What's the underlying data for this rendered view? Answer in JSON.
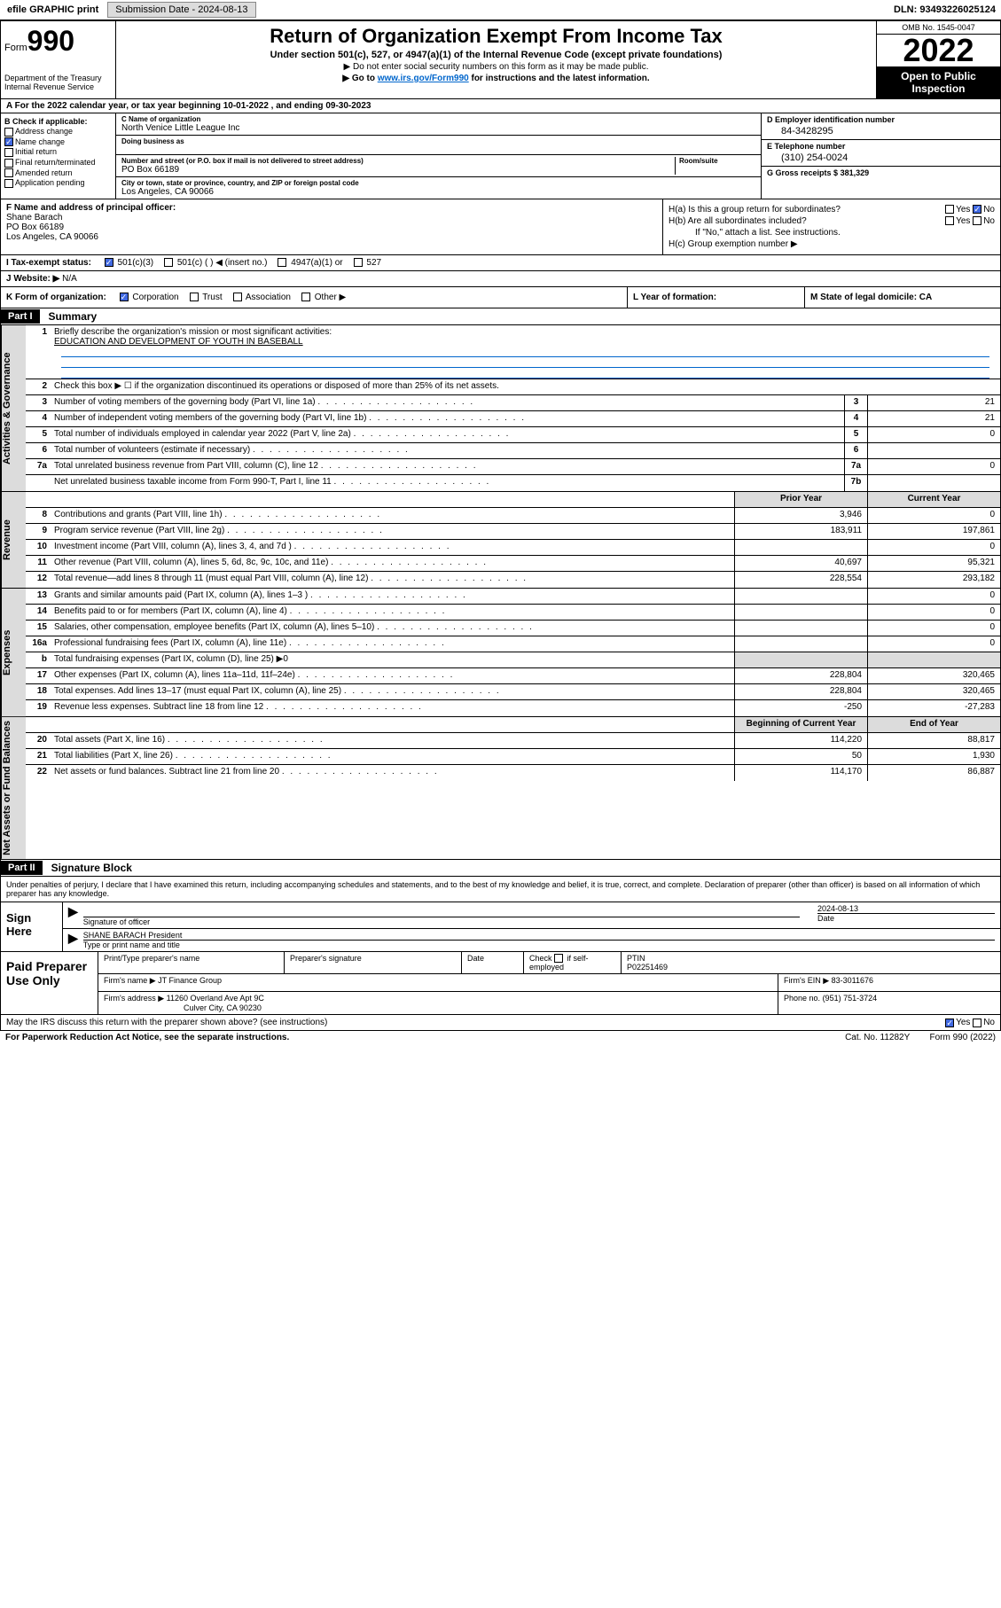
{
  "top": {
    "efile": "efile GRAPHIC print",
    "submission": "Submission Date - 2024-08-13",
    "dln": "DLN: 93493226025124"
  },
  "header": {
    "form_label": "Form",
    "form_num": "990",
    "dept": "Department of the Treasury\nInternal Revenue Service",
    "title": "Return of Organization Exempt From Income Tax",
    "sub": "Under section 501(c), 527, or 4947(a)(1) of the Internal Revenue Code (except private foundations)",
    "note": "▶ Do not enter social security numbers on this form as it may be made public.",
    "link_pre": "▶ Go to ",
    "link_url": "www.irs.gov/Form990",
    "link_post": " for instructions and the latest information.",
    "omb": "OMB No. 1545-0047",
    "year": "2022",
    "open": "Open to Public Inspection"
  },
  "line_a": "A For the 2022 calendar year, or tax year beginning 10-01-2022    , and ending 09-30-2023",
  "b": {
    "hdr": "B Check if applicable:",
    "items": [
      "Address change",
      "Name change",
      "Initial return",
      "Final return/terminated",
      "Amended return",
      "Application pending"
    ],
    "checked_idx": 1
  },
  "c": {
    "name_lbl": "C Name of organization",
    "name": "North Venice Little League Inc",
    "dba_lbl": "Doing business as",
    "addr_lbl": "Number and street (or P.O. box if mail is not delivered to street address)",
    "room_lbl": "Room/suite",
    "addr": "PO Box 66189",
    "city_lbl": "City or town, state or province, country, and ZIP or foreign postal code",
    "city": "Los Angeles, CA  90066"
  },
  "d": {
    "lbl": "D Employer identification number",
    "val": "84-3428295"
  },
  "e": {
    "lbl": "E Telephone number",
    "val": "(310) 254-0024"
  },
  "g": {
    "lbl": "G Gross receipts $",
    "val": "381,329"
  },
  "f": {
    "lbl": "F Name and address of principal officer:",
    "name": "Shane Barach",
    "addr1": "PO Box 66189",
    "addr2": "Los Angeles, CA  90066"
  },
  "h": {
    "a": "H(a)  Is this a group return for subordinates?",
    "b": "H(b)  Are all subordinates included?",
    "b_note": "If \"No,\" attach a list. See instructions.",
    "c": "H(c)  Group exemption number ▶",
    "yes": "Yes",
    "no": "No"
  },
  "i": {
    "lbl": "I   Tax-exempt status:",
    "opts": [
      "501(c)(3)",
      "501(c) (  ) ◀ (insert no.)",
      "4947(a)(1) or",
      "527"
    ],
    "checked_idx": 0
  },
  "j": {
    "lbl": "J   Website: ▶",
    "val": "N/A"
  },
  "k": {
    "lbl": "K Form of organization:",
    "opts": [
      "Corporation",
      "Trust",
      "Association",
      "Other ▶"
    ],
    "checked_idx": 0
  },
  "l": "L Year of formation:",
  "m": "M State of legal domicile: CA",
  "part1": {
    "hdr": "Part I",
    "title": "Summary"
  },
  "sections": [
    {
      "side": "Activities & Governance",
      "rows": [
        {
          "n": "1",
          "d": "Briefly describe the organization's mission or most significant activities:",
          "mission": "EDUCATION AND DEVELOPMENT OF YOUTH IN BASEBALL",
          "type": "mission"
        },
        {
          "n": "2",
          "d": "Check this box ▶ ☐  if the organization discontinued its operations or disposed of more than 25% of its net assets.",
          "type": "plain"
        },
        {
          "n": "3",
          "d": "Number of voting members of the governing body (Part VI, line 1a)",
          "box": "3",
          "v": "21",
          "type": "single"
        },
        {
          "n": "4",
          "d": "Number of independent voting members of the governing body (Part VI, line 1b)",
          "box": "4",
          "v": "21",
          "type": "single"
        },
        {
          "n": "5",
          "d": "Total number of individuals employed in calendar year 2022 (Part V, line 2a)",
          "box": "5",
          "v": "0",
          "type": "single"
        },
        {
          "n": "6",
          "d": "Total number of volunteers (estimate if necessary)",
          "box": "6",
          "v": "",
          "type": "single"
        },
        {
          "n": "7a",
          "d": "Total unrelated business revenue from Part VIII, column (C), line 12",
          "box": "7a",
          "v": "0",
          "type": "single"
        },
        {
          "n": "",
          "d": "Net unrelated business taxable income from Form 990-T, Part I, line 11",
          "box": "7b",
          "v": "",
          "type": "single"
        }
      ]
    },
    {
      "side": "Revenue",
      "header": {
        "py": "Prior Year",
        "cy": "Current Year"
      },
      "rows": [
        {
          "n": "8",
          "d": "Contributions and grants (Part VIII, line 1h)",
          "py": "3,946",
          "cy": "0"
        },
        {
          "n": "9",
          "d": "Program service revenue (Part VIII, line 2g)",
          "py": "183,911",
          "cy": "197,861"
        },
        {
          "n": "10",
          "d": "Investment income (Part VIII, column (A), lines 3, 4, and 7d )",
          "py": "",
          "cy": "0"
        },
        {
          "n": "11",
          "d": "Other revenue (Part VIII, column (A), lines 5, 6d, 8c, 9c, 10c, and 11e)",
          "py": "40,697",
          "cy": "95,321"
        },
        {
          "n": "12",
          "d": "Total revenue—add lines 8 through 11 (must equal Part VIII, column (A), line 12)",
          "py": "228,554",
          "cy": "293,182"
        }
      ]
    },
    {
      "side": "Expenses",
      "rows": [
        {
          "n": "13",
          "d": "Grants and similar amounts paid (Part IX, column (A), lines 1–3 )",
          "py": "",
          "cy": "0"
        },
        {
          "n": "14",
          "d": "Benefits paid to or for members (Part IX, column (A), line 4)",
          "py": "",
          "cy": "0"
        },
        {
          "n": "15",
          "d": "Salaries, other compensation, employee benefits (Part IX, column (A), lines 5–10)",
          "py": "",
          "cy": "0"
        },
        {
          "n": "16a",
          "d": "Professional fundraising fees (Part IX, column (A), line 11e)",
          "py": "",
          "cy": "0"
        },
        {
          "n": "b",
          "d": "Total fundraising expenses (Part IX, column (D), line 25) ▶0",
          "py": "—",
          "cy": "—",
          "type": "span"
        },
        {
          "n": "17",
          "d": "Other expenses (Part IX, column (A), lines 11a–11d, 11f–24e)",
          "py": "228,804",
          "cy": "320,465"
        },
        {
          "n": "18",
          "d": "Total expenses. Add lines 13–17 (must equal Part IX, column (A), line 25)",
          "py": "228,804",
          "cy": "320,465"
        },
        {
          "n": "19",
          "d": "Revenue less expenses. Subtract line 18 from line 12",
          "py": "-250",
          "cy": "-27,283"
        }
      ]
    },
    {
      "side": "Net Assets or Fund Balances",
      "header": {
        "py": "Beginning of Current Year",
        "cy": "End of Year"
      },
      "rows": [
        {
          "n": "20",
          "d": "Total assets (Part X, line 16)",
          "py": "114,220",
          "cy": "88,817"
        },
        {
          "n": "21",
          "d": "Total liabilities (Part X, line 26)",
          "py": "50",
          "cy": "1,930"
        },
        {
          "n": "22",
          "d": "Net assets or fund balances. Subtract line 21 from line 20",
          "py": "114,170",
          "cy": "86,887"
        }
      ]
    }
  ],
  "part2": {
    "hdr": "Part II",
    "title": "Signature Block"
  },
  "sig": {
    "decl": "Under penalties of perjury, I declare that I have examined this return, including accompanying schedules and statements, and to the best of my knowledge and belief, it is true, correct, and complete. Declaration of preparer (other than officer) is based on all information of which preparer has any knowledge.",
    "sign_here": "Sign Here",
    "sig_of": "Signature of officer",
    "date": "Date",
    "date_val": "2024-08-13",
    "name_title": "SHANE BARACH  President",
    "type_name": "Type or print name and title"
  },
  "prep": {
    "label": "Paid Preparer Use Only",
    "h1": "Print/Type preparer's name",
    "h2": "Preparer's signature",
    "h3": "Date",
    "h4_pre": "Check",
    "h4_post": "if self-employed",
    "ptin_lbl": "PTIN",
    "ptin": "P02251469",
    "firm_lbl": "Firm's name    ▶",
    "firm": "JT Finance Group",
    "ein_lbl": "Firm's EIN ▶",
    "ein": "83-3011676",
    "addr_lbl": "Firm's address ▶",
    "addr1": "11260 Overland Ave Apt 9C",
    "addr2": "Culver City, CA  90230",
    "phone_lbl": "Phone no.",
    "phone": "(951) 751-3724"
  },
  "footer": {
    "q": "May the IRS discuss this return with the preparer shown above? (see instructions)",
    "yes": "Yes",
    "no": "No",
    "paperwork": "For Paperwork Reduction Act Notice, see the separate instructions.",
    "cat": "Cat. No. 11282Y",
    "form": "Form 990 (2022)"
  }
}
